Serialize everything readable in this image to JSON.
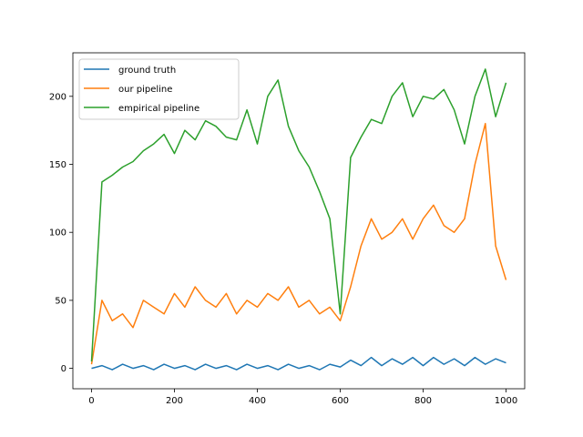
{
  "chart_data": {
    "type": "line",
    "title": "",
    "xlabel": "",
    "ylabel": "",
    "xlim": [
      -45,
      1045
    ],
    "ylim": [
      -15,
      232
    ],
    "xticks": [
      0,
      200,
      400,
      600,
      800,
      1000
    ],
    "yticks": [
      0,
      50,
      100,
      150,
      200
    ],
    "grid": false,
    "legend_position": "top-left",
    "x": [
      0,
      25,
      50,
      75,
      100,
      125,
      150,
      175,
      200,
      225,
      250,
      275,
      300,
      325,
      350,
      375,
      400,
      425,
      450,
      475,
      500,
      525,
      550,
      575,
      600,
      625,
      650,
      675,
      700,
      725,
      750,
      775,
      800,
      825,
      850,
      875,
      900,
      925,
      950,
      975,
      1000
    ],
    "series": [
      {
        "name": "ground truth",
        "color": "#1f77b4",
        "values": [
          0,
          2,
          -1,
          3,
          0,
          2,
          -1,
          3,
          0,
          2,
          -1,
          3,
          0,
          2,
          -1,
          3,
          0,
          2,
          -1,
          3,
          0,
          2,
          -1,
          3,
          1,
          6,
          2,
          8,
          2,
          7,
          3,
          8,
          2,
          8,
          3,
          7,
          2,
          8,
          3,
          7,
          4
        ]
      },
      {
        "name": "our pipeline",
        "color": "#ff7f0e",
        "values": [
          3,
          50,
          35,
          40,
          30,
          50,
          45,
          40,
          55,
          45,
          60,
          50,
          45,
          55,
          40,
          50,
          45,
          55,
          50,
          60,
          45,
          50,
          40,
          45,
          35,
          60,
          90,
          110,
          95,
          100,
          110,
          95,
          110,
          120,
          105,
          100,
          110,
          150,
          180,
          90,
          65
        ]
      },
      {
        "name": "empirical pipeline",
        "color": "#2ca02c",
        "values": [
          5,
          137,
          142,
          148,
          152,
          160,
          165,
          172,
          158,
          175,
          168,
          182,
          178,
          170,
          168,
          190,
          165,
          200,
          212,
          178,
          160,
          148,
          130,
          110,
          40,
          155,
          170,
          183,
          180,
          200,
          210,
          185,
          200,
          198,
          205,
          190,
          165,
          200,
          220,
          185,
          210
        ]
      }
    ]
  }
}
